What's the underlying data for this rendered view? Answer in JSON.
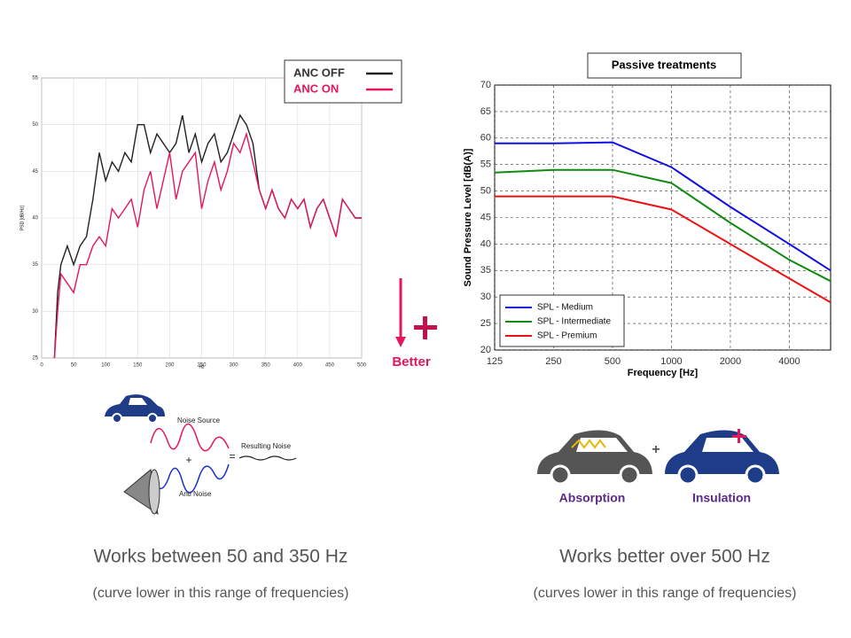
{
  "chart_data": [
    {
      "type": "line",
      "xlabel": "Hz",
      "ylabel": "PSD [dB/Hz]",
      "x": [
        20,
        25,
        30,
        40,
        50,
        60,
        70,
        80,
        90,
        100,
        110,
        120,
        130,
        140,
        150,
        160,
        170,
        180,
        190,
        200,
        210,
        220,
        230,
        240,
        250,
        260,
        270,
        280,
        290,
        300,
        310,
        320,
        330,
        340,
        350,
        360,
        370,
        380,
        390,
        400,
        410,
        420,
        430,
        440,
        450,
        460,
        470,
        480,
        490,
        500
      ],
      "xlim": [
        0,
        500
      ],
      "xticks": [
        0,
        50,
        100,
        150,
        200,
        250,
        300,
        350,
        400,
        450,
        500
      ],
      "ylim": [
        25,
        55
      ],
      "yticks": [
        25,
        30,
        35,
        40,
        45,
        50,
        55
      ],
      "grid": true,
      "legend": "upper right",
      "series": [
        {
          "name": "ANC OFF",
          "color": "#222222",
          "values": [
            25,
            32,
            35,
            37,
            35,
            37,
            38,
            42,
            47,
            44,
            46,
            45,
            47,
            46,
            50,
            50,
            47,
            49,
            48,
            47,
            48,
            51,
            47,
            49,
            46,
            48,
            49,
            46,
            47,
            49,
            51,
            50,
            48,
            43,
            41,
            43,
            41,
            40,
            42,
            41,
            42,
            39,
            41,
            42,
            40,
            38,
            42,
            41,
            40,
            40
          ]
        },
        {
          "name": "ANC ON",
          "color": "#e3175a",
          "values": [
            25,
            30,
            34,
            33,
            32,
            35,
            35,
            37,
            38,
            37,
            41,
            40,
            41,
            42,
            39,
            43,
            45,
            41,
            44,
            47,
            42,
            45,
            46,
            47,
            41,
            44,
            46,
            43,
            45,
            48,
            47,
            49,
            46,
            43,
            41,
            43,
            41,
            40,
            42,
            41,
            42,
            39,
            41,
            42,
            40,
            38,
            42,
            41,
            40,
            40
          ]
        }
      ]
    },
    {
      "type": "line",
      "title": "Passive treatments",
      "xlabel": "Frequency [Hz]",
      "ylabel": "Sound Pressure Level [dB(A)]",
      "x": [
        125,
        250,
        500,
        1000,
        2000,
        4000,
        6500
      ],
      "xlog": true,
      "xlim": [
        125,
        6500
      ],
      "xticks": [
        125,
        250,
        500,
        1000,
        2000,
        4000
      ],
      "ylim": [
        20,
        70
      ],
      "yticks": [
        20,
        25,
        30,
        35,
        40,
        45,
        50,
        55,
        60,
        65,
        70
      ],
      "grid": true,
      "legend": "lower left",
      "series": [
        {
          "name": "SPL - Medium",
          "color": "#1010e0",
          "values": [
            59,
            59,
            59.2,
            54.5,
            47,
            40,
            35
          ]
        },
        {
          "name": "SPL - Intermediate",
          "color": "#108a10",
          "values": [
            53.5,
            54,
            54,
            51.5,
            44,
            37,
            33
          ]
        },
        {
          "name": "SPL - Premium",
          "color": "#ee1111",
          "values": [
            49,
            49,
            49,
            46.5,
            40,
            33.5,
            29
          ]
        }
      ]
    }
  ],
  "better": "Better",
  "anc_diagram": {
    "noise_source": "Noise Source",
    "resulting_noise": "Resulting Noise",
    "anti_noise": "Anti Noise",
    "plus": "+",
    "equals": "="
  },
  "passive_diagram": {
    "absorption": "Absorption",
    "insulation": "Insulation",
    "plus": "+"
  },
  "left_caption": {
    "title": "Works between 50 and 350 Hz",
    "note": "(curve lower in this range of frequencies)"
  },
  "right_caption": {
    "title": "Works better over 500 Hz",
    "note": "(curves lower in this range of frequencies)"
  }
}
